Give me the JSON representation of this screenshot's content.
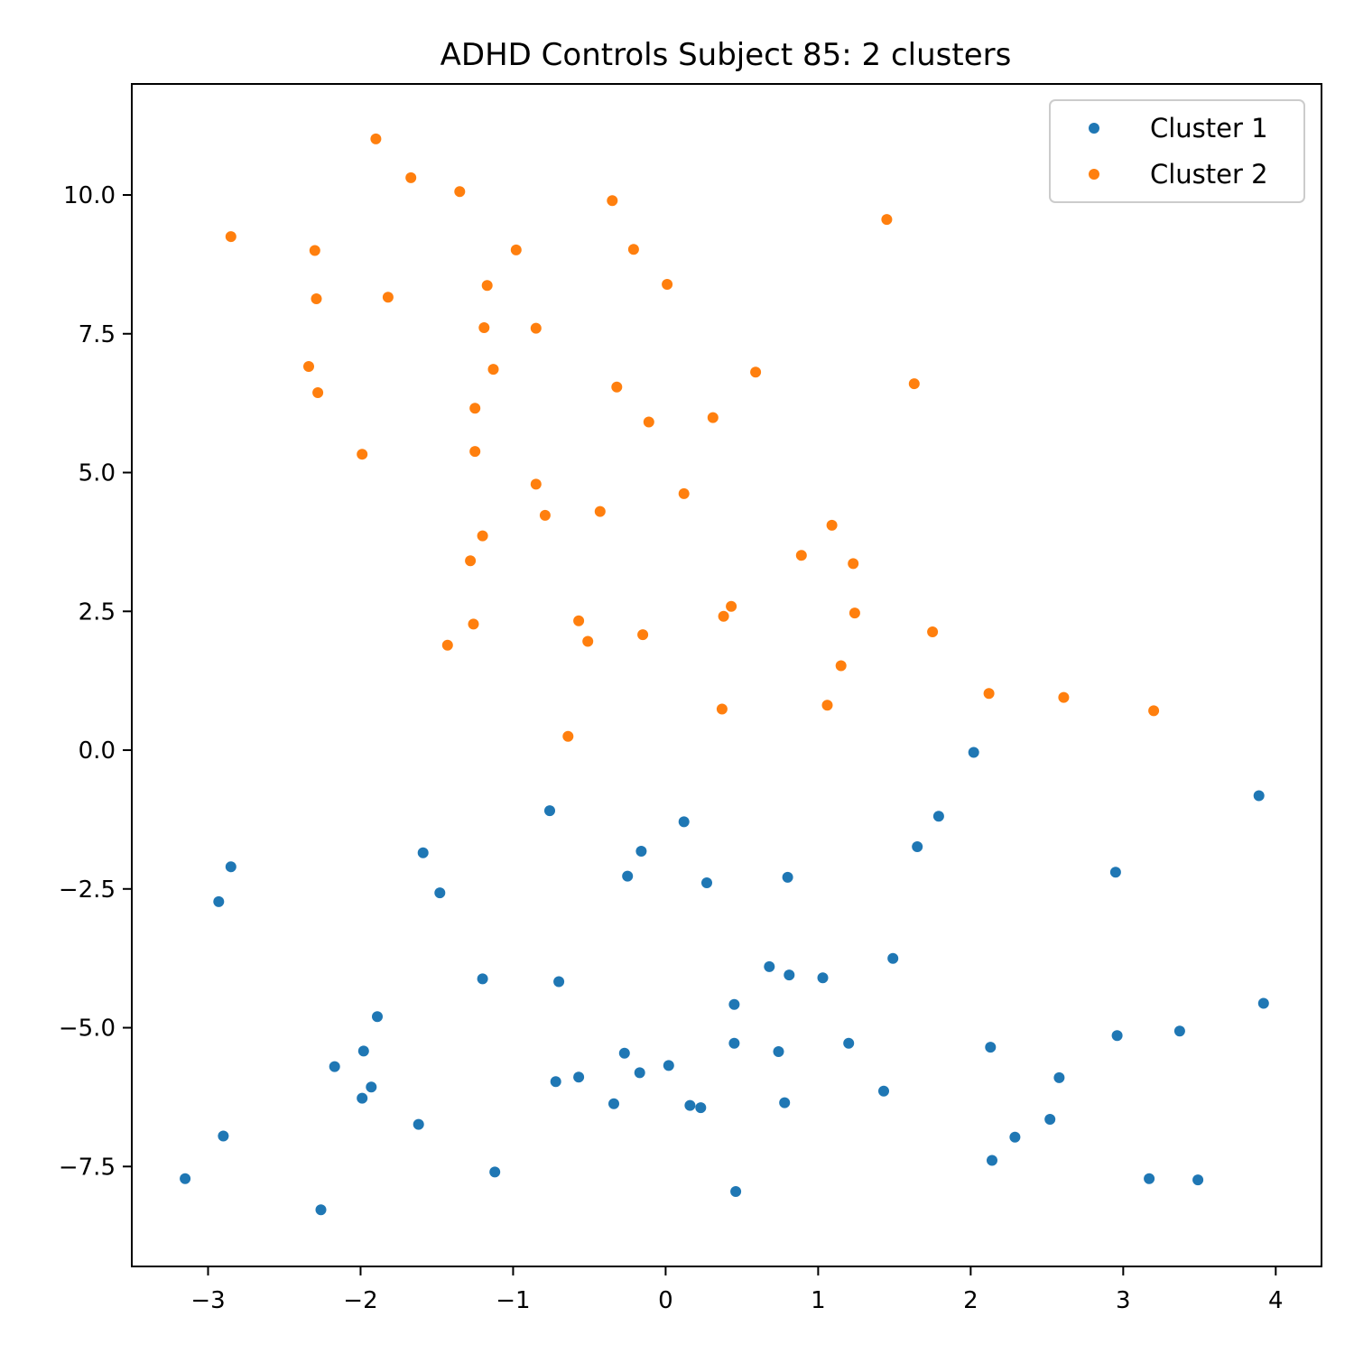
{
  "chart_data": {
    "type": "scatter",
    "title": "ADHD Controls Subject 85: 2 clusters",
    "xlabel": "",
    "ylabel": "",
    "xlim": [
      -3.5,
      4.3
    ],
    "ylim": [
      -9.3,
      12.0
    ],
    "xticks": [
      {
        "value": -3,
        "label": "−3"
      },
      {
        "value": -2,
        "label": "−2"
      },
      {
        "value": -1,
        "label": "−1"
      },
      {
        "value": 0,
        "label": "0"
      },
      {
        "value": 1,
        "label": "1"
      },
      {
        "value": 2,
        "label": "2"
      },
      {
        "value": 3,
        "label": "3"
      },
      {
        "value": 4,
        "label": "4"
      }
    ],
    "yticks": [
      {
        "value": -7.5,
        "label": "−7.5"
      },
      {
        "value": -5.0,
        "label": "−5.0"
      },
      {
        "value": -2.5,
        "label": "−2.5"
      },
      {
        "value": 0.0,
        "label": "0.0"
      },
      {
        "value": 2.5,
        "label": "2.5"
      },
      {
        "value": 5.0,
        "label": "5.0"
      },
      {
        "value": 7.5,
        "label": "7.5"
      },
      {
        "value": 10.0,
        "label": "10.0"
      }
    ],
    "grid": false,
    "legend_position": "top-right",
    "series": [
      {
        "name": "Cluster 1",
        "color": "#1f77b4",
        "points": [
          [
            -3.15,
            -7.72
          ],
          [
            -2.85,
            -2.1
          ],
          [
            -2.93,
            -2.73
          ],
          [
            -2.9,
            -6.95
          ],
          [
            -2.26,
            -8.28
          ],
          [
            -2.17,
            -5.7
          ],
          [
            -1.98,
            -5.42
          ],
          [
            -1.99,
            -6.27
          ],
          [
            -1.93,
            -6.07
          ],
          [
            -1.89,
            -4.8
          ],
          [
            -1.62,
            -6.74
          ],
          [
            -1.59,
            -1.85
          ],
          [
            -1.48,
            -2.57
          ],
          [
            -1.2,
            -4.12
          ],
          [
            -1.12,
            -7.6
          ],
          [
            -0.76,
            -1.09
          ],
          [
            -0.7,
            -4.17
          ],
          [
            -0.72,
            -5.97
          ],
          [
            -0.57,
            -5.89
          ],
          [
            -0.34,
            -6.37
          ],
          [
            -0.27,
            -5.46
          ],
          [
            -0.25,
            -2.27
          ],
          [
            -0.16,
            -1.82
          ],
          [
            -0.17,
            -5.81
          ],
          [
            0.02,
            -5.68
          ],
          [
            0.12,
            -1.29
          ],
          [
            0.16,
            -6.4
          ],
          [
            0.23,
            -6.44
          ],
          [
            0.27,
            -2.39
          ],
          [
            0.45,
            -4.58
          ],
          [
            0.45,
            -5.28
          ],
          [
            0.46,
            -7.95
          ],
          [
            0.68,
            -3.9
          ],
          [
            0.74,
            -5.43
          ],
          [
            0.78,
            -6.35
          ],
          [
            0.8,
            -2.29
          ],
          [
            0.81,
            -4.05
          ],
          [
            1.03,
            -4.1
          ],
          [
            1.2,
            -5.28
          ],
          [
            1.43,
            -6.14
          ],
          [
            1.49,
            -3.75
          ],
          [
            1.65,
            -1.74
          ],
          [
            1.79,
            -1.19
          ],
          [
            2.02,
            -0.04
          ],
          [
            2.13,
            -5.35
          ],
          [
            2.14,
            -7.39
          ],
          [
            2.29,
            -6.97
          ],
          [
            2.52,
            -6.65
          ],
          [
            2.58,
            -5.9
          ],
          [
            2.95,
            -2.2
          ],
          [
            2.96,
            -5.14
          ],
          [
            3.17,
            -7.72
          ],
          [
            3.37,
            -5.06
          ],
          [
            3.49,
            -7.74
          ],
          [
            3.89,
            -0.82
          ],
          [
            3.92,
            -4.56
          ]
        ]
      },
      {
        "name": "Cluster 2",
        "color": "#ff7f0e",
        "points": [
          [
            -2.85,
            9.25
          ],
          [
            -2.3,
            9.0
          ],
          [
            -2.29,
            8.13
          ],
          [
            -2.34,
            6.91
          ],
          [
            -2.28,
            6.44
          ],
          [
            -1.99,
            5.33
          ],
          [
            -1.9,
            11.01
          ],
          [
            -1.82,
            8.16
          ],
          [
            -1.67,
            10.31
          ],
          [
            -1.43,
            1.89
          ],
          [
            -1.35,
            10.06
          ],
          [
            -1.28,
            3.41
          ],
          [
            -1.26,
            2.27
          ],
          [
            -1.25,
            6.16
          ],
          [
            -1.25,
            5.38
          ],
          [
            -1.2,
            3.86
          ],
          [
            -1.19,
            7.61
          ],
          [
            -1.17,
            8.37
          ],
          [
            -1.13,
            6.86
          ],
          [
            -0.98,
            9.01
          ],
          [
            -0.85,
            7.6
          ],
          [
            -0.85,
            4.79
          ],
          [
            -0.79,
            4.23
          ],
          [
            -0.64,
            0.25
          ],
          [
            -0.57,
            2.33
          ],
          [
            -0.51,
            1.96
          ],
          [
            -0.43,
            4.3
          ],
          [
            -0.35,
            9.9
          ],
          [
            -0.32,
            6.54
          ],
          [
            -0.21,
            9.02
          ],
          [
            -0.15,
            2.08
          ],
          [
            -0.11,
            5.91
          ],
          [
            0.01,
            8.39
          ],
          [
            0.12,
            4.62
          ],
          [
            0.31,
            5.99
          ],
          [
            0.37,
            0.74
          ],
          [
            0.38,
            2.41
          ],
          [
            0.43,
            2.59
          ],
          [
            0.59,
            6.81
          ],
          [
            0.89,
            3.51
          ],
          [
            1.06,
            0.81
          ],
          [
            1.09,
            4.05
          ],
          [
            1.15,
            1.52
          ],
          [
            1.23,
            3.36
          ],
          [
            1.24,
            2.47
          ],
          [
            1.45,
            9.56
          ],
          [
            1.63,
            6.6
          ],
          [
            1.75,
            2.13
          ],
          [
            2.12,
            1.02
          ],
          [
            2.61,
            0.95
          ],
          [
            3.2,
            0.71
          ]
        ]
      }
    ]
  }
}
